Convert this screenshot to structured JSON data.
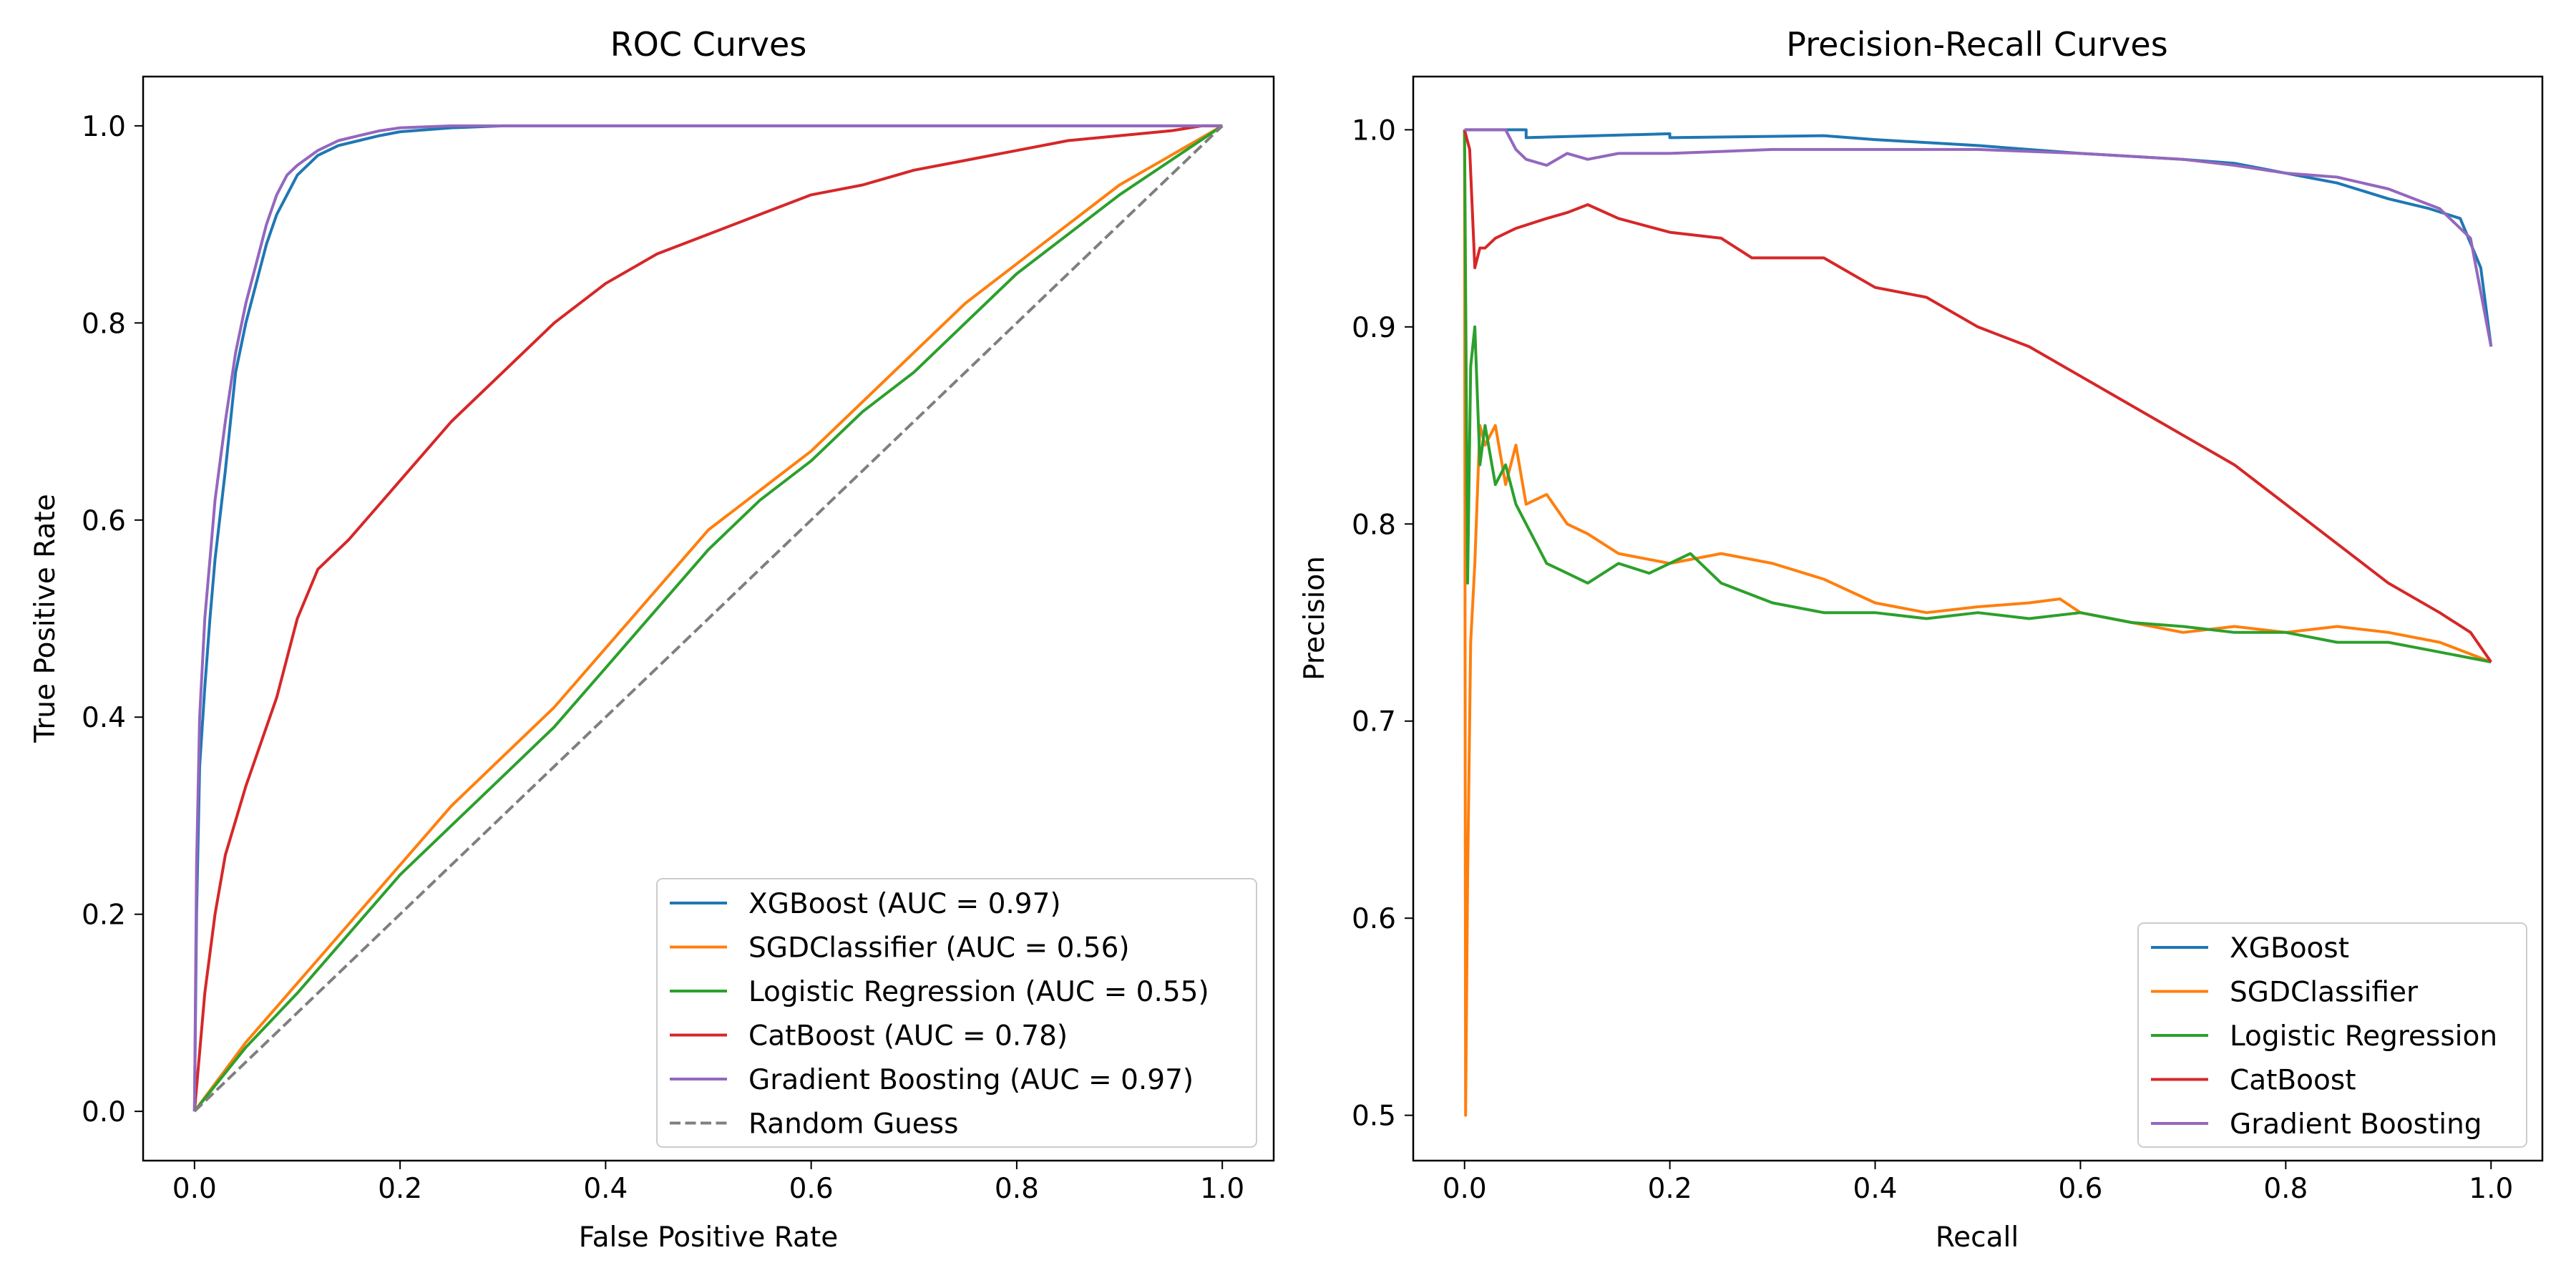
{
  "colors": {
    "xgboost": "#1f77b4",
    "sgd": "#ff7f0e",
    "logistic": "#2ca02c",
    "catboost": "#d62728",
    "gradient_boosting": "#9467bd",
    "random_guess": "#7f7f7f"
  },
  "chart_data": [
    {
      "type": "line",
      "title": "ROC Curves",
      "xlabel": "False Positive Rate",
      "ylabel": "True Positive Rate",
      "xlim": [
        -0.05,
        1.05
      ],
      "ylim": [
        -0.05,
        1.05
      ],
      "xticks": [
        "0.0",
        "0.2",
        "0.4",
        "0.6",
        "0.8",
        "1.0"
      ],
      "yticks": [
        "0.0",
        "0.2",
        "0.4",
        "0.6",
        "0.8",
        "1.0"
      ],
      "grid": false,
      "legend_position": "lower-right",
      "series": [
        {
          "name": "XGBoost (AUC = 0.97)",
          "color": "#1f77b4",
          "dash": false,
          "x": [
            0,
            0.002,
            0.005,
            0.01,
            0.015,
            0.02,
            0.03,
            0.04,
            0.05,
            0.06,
            0.07,
            0.08,
            0.09,
            0.1,
            0.12,
            0.14,
            0.16,
            0.18,
            0.2,
            0.25,
            0.3,
            0.5,
            1.0
          ],
          "y": [
            0,
            0.2,
            0.35,
            0.43,
            0.5,
            0.56,
            0.65,
            0.75,
            0.8,
            0.84,
            0.88,
            0.91,
            0.93,
            0.95,
            0.97,
            0.98,
            0.985,
            0.99,
            0.994,
            0.998,
            1.0,
            1.0,
            1.0
          ]
        },
        {
          "name": "SGDClassifier (AUC = 0.56)",
          "color": "#ff7f0e",
          "dash": false,
          "x": [
            0,
            0.05,
            0.1,
            0.15,
            0.2,
            0.25,
            0.3,
            0.35,
            0.4,
            0.45,
            0.5,
            0.55,
            0.6,
            0.65,
            0.7,
            0.75,
            0.8,
            0.85,
            0.9,
            0.95,
            1.0
          ],
          "y": [
            0,
            0.07,
            0.13,
            0.19,
            0.25,
            0.31,
            0.36,
            0.41,
            0.47,
            0.53,
            0.59,
            0.63,
            0.67,
            0.72,
            0.77,
            0.82,
            0.86,
            0.9,
            0.94,
            0.97,
            1.0
          ]
        },
        {
          "name": "Logistic Regression (AUC = 0.55)",
          "color": "#2ca02c",
          "dash": false,
          "x": [
            0,
            0.05,
            0.1,
            0.15,
            0.2,
            0.25,
            0.3,
            0.35,
            0.4,
            0.45,
            0.5,
            0.55,
            0.6,
            0.65,
            0.7,
            0.75,
            0.8,
            0.85,
            0.9,
            0.95,
            1.0
          ],
          "y": [
            0,
            0.065,
            0.12,
            0.18,
            0.24,
            0.29,
            0.34,
            0.39,
            0.45,
            0.51,
            0.57,
            0.62,
            0.66,
            0.71,
            0.75,
            0.8,
            0.85,
            0.89,
            0.93,
            0.965,
            1.0
          ]
        },
        {
          "name": "CatBoost (AUC = 0.78)",
          "color": "#d62728",
          "dash": false,
          "x": [
            0,
            0.01,
            0.02,
            0.03,
            0.05,
            0.08,
            0.1,
            0.12,
            0.15,
            0.2,
            0.25,
            0.3,
            0.35,
            0.4,
            0.45,
            0.5,
            0.55,
            0.6,
            0.65,
            0.7,
            0.75,
            0.8,
            0.85,
            0.9,
            0.95,
            0.98,
            1.0
          ],
          "y": [
            0,
            0.12,
            0.2,
            0.26,
            0.33,
            0.42,
            0.5,
            0.55,
            0.58,
            0.64,
            0.7,
            0.75,
            0.8,
            0.84,
            0.87,
            0.89,
            0.91,
            0.93,
            0.94,
            0.955,
            0.965,
            0.975,
            0.985,
            0.99,
            0.995,
            1.0,
            1.0
          ]
        },
        {
          "name": "Gradient Boosting (AUC = 0.97)",
          "color": "#9467bd",
          "dash": false,
          "x": [
            0,
            0.002,
            0.005,
            0.01,
            0.015,
            0.02,
            0.03,
            0.04,
            0.05,
            0.06,
            0.07,
            0.08,
            0.09,
            0.1,
            0.12,
            0.14,
            0.16,
            0.18,
            0.2,
            0.25,
            0.3,
            0.5,
            1.0
          ],
          "y": [
            0,
            0.25,
            0.4,
            0.5,
            0.56,
            0.62,
            0.7,
            0.77,
            0.82,
            0.86,
            0.9,
            0.93,
            0.95,
            0.96,
            0.975,
            0.985,
            0.99,
            0.995,
            0.998,
            1.0,
            1.0,
            1.0,
            1.0
          ]
        },
        {
          "name": "Random Guess",
          "color": "#7f7f7f",
          "dash": true,
          "x": [
            0,
            1
          ],
          "y": [
            0,
            1
          ]
        }
      ]
    },
    {
      "type": "line",
      "title": "Precision-Recall Curves",
      "xlabel": "Recall",
      "ylabel": "Precision",
      "xlim": [
        -0.05,
        1.05
      ],
      "ylim": [
        0.477,
        1.027
      ],
      "xticks": [
        "0.0",
        "0.2",
        "0.4",
        "0.6",
        "0.8",
        "1.0"
      ],
      "yticks": [
        "0.5",
        "0.6",
        "0.7",
        "0.8",
        "0.9",
        "1.0"
      ],
      "grid": false,
      "legend_position": "lower-right",
      "series": [
        {
          "name": "XGBoost",
          "color": "#1f77b4",
          "dash": false,
          "x": [
            0,
            0.06,
            0.06,
            0.2,
            0.2,
            0.35,
            0.4,
            0.5,
            0.6,
            0.7,
            0.75,
            0.8,
            0.85,
            0.9,
            0.94,
            0.97,
            0.99,
            1.0
          ],
          "y": [
            1.0,
            1.0,
            0.996,
            0.998,
            0.996,
            0.997,
            0.995,
            0.992,
            0.988,
            0.985,
            0.983,
            0.978,
            0.973,
            0.965,
            0.96,
            0.955,
            0.93,
            0.89
          ]
        },
        {
          "name": "SGDClassifier",
          "color": "#ff7f0e",
          "dash": false,
          "x": [
            0,
            0.001,
            0.003,
            0.006,
            0.01,
            0.015,
            0.02,
            0.03,
            0.04,
            0.05,
            0.06,
            0.08,
            0.1,
            0.12,
            0.15,
            0.2,
            0.25,
            0.3,
            0.35,
            0.4,
            0.45,
            0.5,
            0.55,
            0.58,
            0.6,
            0.65,
            0.7,
            0.75,
            0.8,
            0.85,
            0.9,
            0.95,
            1.0
          ],
          "y": [
            1.0,
            0.5,
            0.62,
            0.74,
            0.78,
            0.85,
            0.84,
            0.85,
            0.82,
            0.84,
            0.81,
            0.815,
            0.8,
            0.795,
            0.785,
            0.78,
            0.785,
            0.78,
            0.772,
            0.76,
            0.755,
            0.758,
            0.76,
            0.762,
            0.755,
            0.75,
            0.745,
            0.748,
            0.745,
            0.748,
            0.745,
            0.74,
            0.73
          ]
        },
        {
          "name": "Logistic Regression",
          "color": "#2ca02c",
          "dash": false,
          "x": [
            0,
            0.003,
            0.006,
            0.01,
            0.015,
            0.02,
            0.03,
            0.04,
            0.05,
            0.06,
            0.08,
            0.1,
            0.12,
            0.15,
            0.18,
            0.22,
            0.25,
            0.3,
            0.35,
            0.4,
            0.45,
            0.5,
            0.55,
            0.6,
            0.65,
            0.7,
            0.75,
            0.8,
            0.85,
            0.9,
            0.95,
            1.0
          ],
          "y": [
            1.0,
            0.77,
            0.88,
            0.9,
            0.83,
            0.85,
            0.82,
            0.83,
            0.81,
            0.8,
            0.78,
            0.775,
            0.77,
            0.78,
            0.775,
            0.785,
            0.77,
            0.76,
            0.755,
            0.755,
            0.752,
            0.755,
            0.752,
            0.755,
            0.75,
            0.748,
            0.745,
            0.745,
            0.74,
            0.74,
            0.735,
            0.73
          ]
        },
        {
          "name": "CatBoost",
          "color": "#d62728",
          "dash": false,
          "x": [
            0,
            0.005,
            0.01,
            0.015,
            0.02,
            0.03,
            0.05,
            0.08,
            0.1,
            0.12,
            0.15,
            0.2,
            0.25,
            0.28,
            0.3,
            0.35,
            0.4,
            0.45,
            0.5,
            0.55,
            0.6,
            0.65,
            0.7,
            0.75,
            0.8,
            0.85,
            0.9,
            0.95,
            0.98,
            1.0
          ],
          "y": [
            1.0,
            0.99,
            0.93,
            0.94,
            0.94,
            0.945,
            0.95,
            0.955,
            0.958,
            0.962,
            0.955,
            0.948,
            0.945,
            0.935,
            0.935,
            0.935,
            0.92,
            0.915,
            0.9,
            0.89,
            0.875,
            0.86,
            0.845,
            0.83,
            0.81,
            0.79,
            0.77,
            0.755,
            0.745,
            0.73
          ]
        },
        {
          "name": "Gradient Boosting",
          "color": "#9467bd",
          "dash": false,
          "x": [
            0,
            0.04,
            0.05,
            0.06,
            0.08,
            0.1,
            0.12,
            0.15,
            0.2,
            0.3,
            0.4,
            0.5,
            0.6,
            0.7,
            0.75,
            0.8,
            0.85,
            0.9,
            0.95,
            0.98,
            1.0
          ],
          "y": [
            1.0,
            1.0,
            0.99,
            0.985,
            0.982,
            0.988,
            0.985,
            0.988,
            0.988,
            0.99,
            0.99,
            0.99,
            0.988,
            0.985,
            0.982,
            0.978,
            0.976,
            0.97,
            0.96,
            0.945,
            0.89
          ]
        }
      ]
    }
  ]
}
